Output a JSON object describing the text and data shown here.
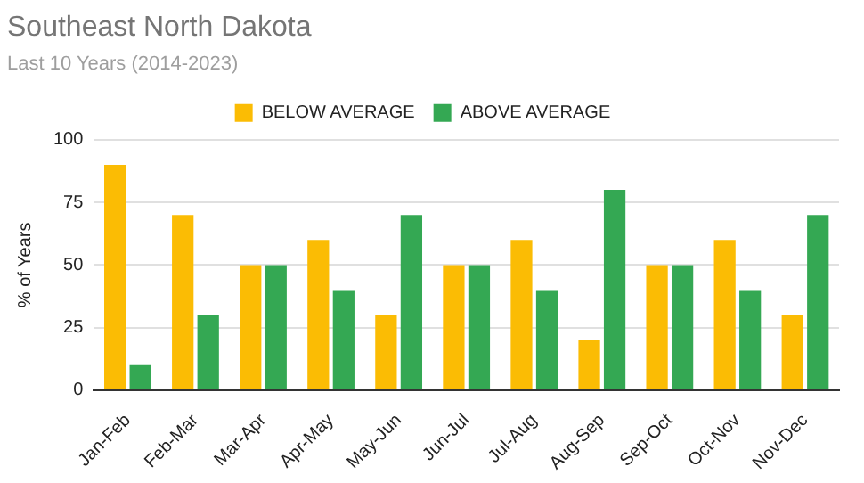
{
  "chart_data": {
    "type": "bar",
    "title": "Southeast North Dakota",
    "subtitle": "Last 10 Years (2014-2023)",
    "ylabel": "% of Years",
    "categories": [
      "Jan-Feb",
      "Feb-Mar",
      "Mar-Apr",
      "Apr-May",
      "May-Jun",
      "Jun-Jul",
      "Jul-Aug",
      "Aug-Sep",
      "Sep-Oct",
      "Oct-Nov",
      "Nov-Dec"
    ],
    "series": [
      {
        "name": "BELOW AVERAGE",
        "color": "#fbbc04",
        "values": [
          90,
          70,
          50,
          60,
          30,
          50,
          60,
          20,
          50,
          60,
          30
        ]
      },
      {
        "name": "ABOVE AVERAGE",
        "color": "#34a853",
        "values": [
          10,
          30,
          50,
          40,
          70,
          50,
          40,
          80,
          50,
          40,
          70
        ]
      }
    ],
    "ylim": [
      0,
      100
    ],
    "yticks": [
      0,
      25,
      50,
      75,
      100
    ],
    "grid": "y",
    "legend": "top"
  }
}
